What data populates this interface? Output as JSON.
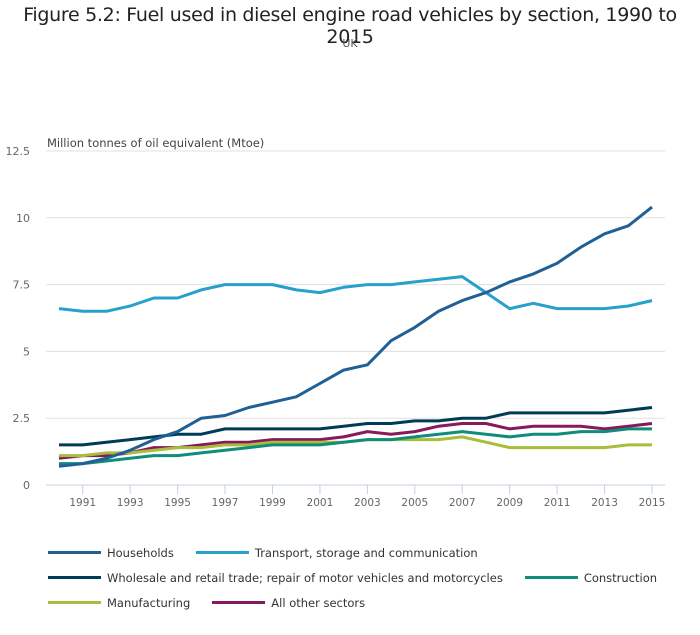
{
  "chart_data": {
    "type": "line",
    "title": "Figure 5.2: Fuel used in diesel engine road vehicles by section, 1990 to 2015",
    "subtitle": "UK",
    "ylabel": "Million tonnes of oil equivalent (Mtoe)",
    "xlabel": "",
    "ylim": [
      0,
      12.5
    ],
    "xlim": [
      1990,
      2015
    ],
    "yticks": [
      0,
      2.5,
      5,
      7.5,
      10,
      12.5
    ],
    "ytick_labels": [
      "0",
      "2.5",
      "5",
      "7.5",
      "10",
      "12.5"
    ],
    "xticks": [
      1991,
      1993,
      1995,
      1997,
      1999,
      2001,
      2003,
      2005,
      2007,
      2009,
      2011,
      2013,
      2015
    ],
    "xtick_labels": [
      "1991",
      "1993",
      "1995",
      "1997",
      "1999",
      "2001",
      "2003",
      "2005",
      "2007",
      "2009",
      "2011",
      "2013",
      "2015"
    ],
    "grid": true,
    "legend_position": "bottom",
    "x": [
      1990,
      1991,
      1992,
      1993,
      1994,
      1995,
      1996,
      1997,
      1998,
      1999,
      2000,
      2001,
      2002,
      2003,
      2004,
      2005,
      2006,
      2007,
      2008,
      2009,
      2010,
      2011,
      2012,
      2013,
      2014,
      2015
    ],
    "series": [
      {
        "name": "Households",
        "color": "#206095",
        "values": [
          0.7,
          0.8,
          1.0,
          1.3,
          1.7,
          2.0,
          2.5,
          2.6,
          2.9,
          3.1,
          3.3,
          3.8,
          4.3,
          4.5,
          5.4,
          5.9,
          6.5,
          6.9,
          7.2,
          7.6,
          7.9,
          8.3,
          8.9,
          9.4,
          9.7,
          10.4
        ]
      },
      {
        "name": "Transport, storage and communication",
        "color": "#27a0cc",
        "values": [
          6.6,
          6.5,
          6.5,
          6.7,
          7.0,
          7.0,
          7.3,
          7.5,
          7.5,
          7.5,
          7.3,
          7.2,
          7.4,
          7.5,
          7.5,
          7.6,
          7.7,
          7.8,
          7.2,
          6.6,
          6.8,
          6.6,
          6.6,
          6.6,
          6.7,
          6.9
        ]
      },
      {
        "name": "Wholesale and retail trade; repair of motor vehicles and motorcycles",
        "color": "#003c57",
        "values": [
          1.5,
          1.5,
          1.6,
          1.7,
          1.8,
          1.9,
          1.9,
          2.1,
          2.1,
          2.1,
          2.1,
          2.1,
          2.2,
          2.3,
          2.3,
          2.4,
          2.4,
          2.5,
          2.5,
          2.7,
          2.7,
          2.7,
          2.7,
          2.7,
          2.8,
          2.9
        ]
      },
      {
        "name": "Construction",
        "color": "#118c7b",
        "values": [
          0.8,
          0.8,
          0.9,
          1.0,
          1.1,
          1.1,
          1.2,
          1.3,
          1.4,
          1.5,
          1.5,
          1.5,
          1.6,
          1.7,
          1.7,
          1.8,
          1.9,
          2.0,
          1.9,
          1.8,
          1.9,
          1.9,
          2.0,
          2.0,
          2.1,
          2.1
        ]
      },
      {
        "name": "Manufacturing",
        "color": "#a8bd3a",
        "values": [
          1.1,
          1.1,
          1.2,
          1.2,
          1.3,
          1.4,
          1.4,
          1.5,
          1.5,
          1.6,
          1.6,
          1.6,
          1.6,
          1.7,
          1.7,
          1.7,
          1.7,
          1.8,
          1.6,
          1.4,
          1.4,
          1.4,
          1.4,
          1.4,
          1.5,
          1.5
        ]
      },
      {
        "name": "All other sectors",
        "color": "#871a5b",
        "values": [
          1.0,
          1.1,
          1.1,
          1.2,
          1.4,
          1.4,
          1.5,
          1.6,
          1.6,
          1.7,
          1.7,
          1.7,
          1.8,
          2.0,
          1.9,
          2.0,
          2.2,
          2.3,
          2.3,
          2.1,
          2.2,
          2.2,
          2.2,
          2.1,
          2.2,
          2.3
        ]
      }
    ]
  },
  "legend": {
    "rows": [
      [
        0,
        1
      ],
      [
        2,
        3
      ],
      [
        4,
        5
      ]
    ]
  }
}
